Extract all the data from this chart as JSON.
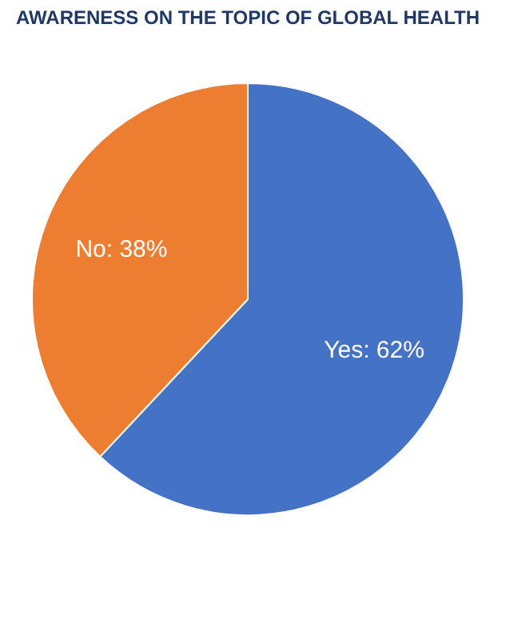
{
  "chart_data": {
    "type": "pie",
    "title": "AWARENESS ON THE TOPIC OF GLOBAL HEALTH",
    "categories": [
      "Yes",
      "No"
    ],
    "values": [
      62,
      38
    ],
    "colors": [
      "#4472c4",
      "#ed7d31"
    ],
    "value_labels": [
      "62%",
      "38%"
    ],
    "legend": false
  }
}
